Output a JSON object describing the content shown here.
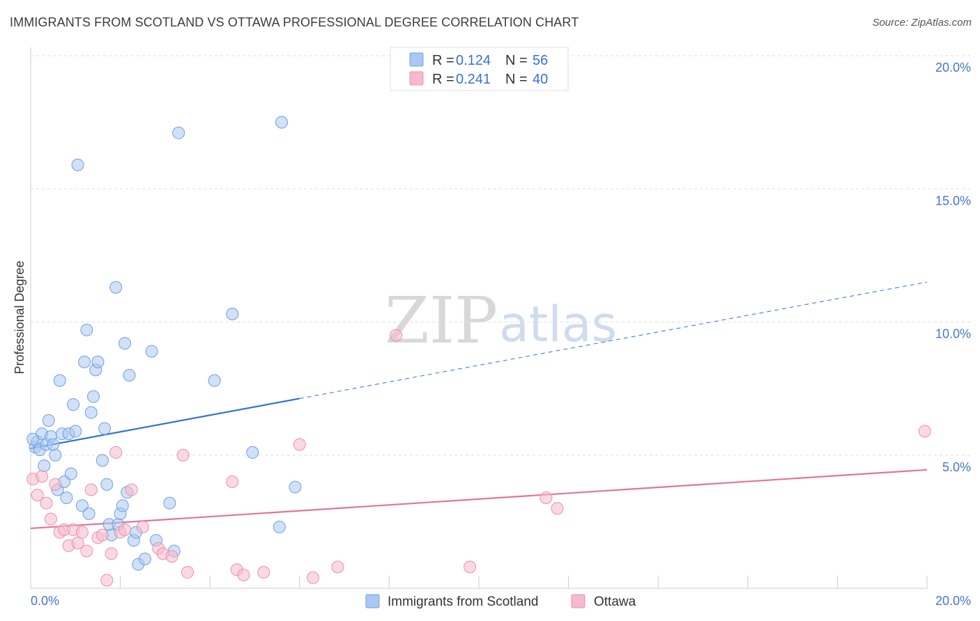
{
  "title": "IMMIGRANTS FROM SCOTLAND VS OTTAWA PROFESSIONAL DEGREE CORRELATION CHART",
  "source": "Source: ZipAtlas.com",
  "watermark": {
    "zip": "ZIP",
    "atlas": "atlas"
  },
  "legend": {
    "rows": [
      {
        "r_label": "R =",
        "r_value": "0.124",
        "n_label": "N =",
        "n_value": "56",
        "color": "#a9c8f2"
      },
      {
        "r_label": "R =",
        "r_value": "0.241",
        "n_label": "N =",
        "n_value": "40",
        "color": "#f7b9cc"
      }
    ]
  },
  "bottom_legend": [
    {
      "label": "Immigrants from Scotland",
      "color": "#a9c8f2"
    },
    {
      "label": "Ottawa",
      "color": "#f7b9cc"
    }
  ],
  "chart_data": {
    "type": "scatter",
    "title": "IMMIGRANTS FROM SCOTLAND VS OTTAWA PROFESSIONAL DEGREE CORRELATION CHART",
    "ylabel": "Professional Degree",
    "xlabel": "",
    "xlim": [
      0,
      20
    ],
    "ylim": [
      0,
      20
    ],
    "x_ticks": [
      "0.0%",
      "20.0%"
    ],
    "y_ticks": [
      {
        "value": 5,
        "label": "5.0%"
      },
      {
        "value": 10,
        "label": "10.0%"
      },
      {
        "value": 15,
        "label": "15.0%"
      },
      {
        "value": 20,
        "label": "20.0%"
      }
    ],
    "grid": true,
    "legend_position": "top-center",
    "series": [
      {
        "name": "Immigrants from Scotland",
        "color": "#a9c8f2",
        "stroke": "#6f9fe0",
        "line_color": "#2f74d0",
        "trend": {
          "x0": 0,
          "y0": 5.25,
          "x1": 20,
          "y1": 11.5,
          "solid_until": 6
        },
        "points": [
          [
            0.1,
            5.3
          ],
          [
            0.15,
            5.5
          ],
          [
            0.2,
            5.2
          ],
          [
            0.25,
            5.8
          ],
          [
            0.3,
            4.6
          ],
          [
            0.35,
            5.4
          ],
          [
            0.4,
            6.3
          ],
          [
            0.45,
            5.7
          ],
          [
            0.5,
            5.4
          ],
          [
            0.55,
            5.0
          ],
          [
            0.6,
            3.7
          ],
          [
            0.65,
            7.8
          ],
          [
            0.7,
            5.8
          ],
          [
            0.75,
            4.0
          ],
          [
            0.8,
            3.4
          ],
          [
            0.85,
            5.8
          ],
          [
            0.9,
            4.3
          ],
          [
            0.95,
            6.9
          ],
          [
            1.0,
            5.9
          ],
          [
            1.05,
            15.9
          ],
          [
            1.15,
            3.1
          ],
          [
            1.2,
            8.5
          ],
          [
            1.25,
            9.7
          ],
          [
            1.3,
            2.8
          ],
          [
            1.35,
            6.6
          ],
          [
            1.4,
            7.2
          ],
          [
            1.45,
            8.2
          ],
          [
            1.5,
            8.5
          ],
          [
            1.6,
            4.8
          ],
          [
            1.65,
            6.0
          ],
          [
            1.7,
            3.9
          ],
          [
            1.75,
            2.4
          ],
          [
            1.8,
            2.0
          ],
          [
            1.9,
            11.3
          ],
          [
            1.95,
            2.4
          ],
          [
            2.0,
            2.8
          ],
          [
            2.05,
            3.1
          ],
          [
            2.1,
            9.2
          ],
          [
            2.15,
            3.6
          ],
          [
            2.2,
            8.0
          ],
          [
            2.3,
            1.8
          ],
          [
            2.35,
            2.1
          ],
          [
            2.4,
            0.9
          ],
          [
            2.55,
            1.1
          ],
          [
            2.7,
            8.9
          ],
          [
            2.8,
            1.8
          ],
          [
            3.1,
            3.2
          ],
          [
            3.2,
            1.4
          ],
          [
            3.3,
            17.1
          ],
          [
            4.1,
            7.8
          ],
          [
            4.5,
            10.3
          ],
          [
            4.95,
            5.1
          ],
          [
            5.55,
            2.3
          ],
          [
            5.6,
            17.5
          ],
          [
            5.9,
            3.8
          ],
          [
            0.05,
            5.6
          ]
        ]
      },
      {
        "name": "Ottawa",
        "color": "#f7b9cc",
        "stroke": "#ec8fab",
        "line_color": "#e4739a",
        "trend": {
          "x0": 0,
          "y0": 2.25,
          "x1": 20,
          "y1": 4.45,
          "solid_until": 20
        },
        "points": [
          [
            0.05,
            4.1
          ],
          [
            0.15,
            3.5
          ],
          [
            0.25,
            4.2
          ],
          [
            0.35,
            3.2
          ],
          [
            0.45,
            2.6
          ],
          [
            0.55,
            3.9
          ],
          [
            0.65,
            2.1
          ],
          [
            0.75,
            2.2
          ],
          [
            0.85,
            1.6
          ],
          [
            0.95,
            2.2
          ],
          [
            1.05,
            1.7
          ],
          [
            1.15,
            2.1
          ],
          [
            1.25,
            1.4
          ],
          [
            1.35,
            3.7
          ],
          [
            1.5,
            1.9
          ],
          [
            1.6,
            2.0
          ],
          [
            1.7,
            0.3
          ],
          [
            1.8,
            1.3
          ],
          [
            1.9,
            5.1
          ],
          [
            2.0,
            2.1
          ],
          [
            2.1,
            2.2
          ],
          [
            2.25,
            3.7
          ],
          [
            2.5,
            2.3
          ],
          [
            2.85,
            1.5
          ],
          [
            2.95,
            1.3
          ],
          [
            3.15,
            1.2
          ],
          [
            3.4,
            5.0
          ],
          [
            3.5,
            0.6
          ],
          [
            4.5,
            4.0
          ],
          [
            4.6,
            0.7
          ],
          [
            4.75,
            0.5
          ],
          [
            5.2,
            0.6
          ],
          [
            6.0,
            5.4
          ],
          [
            6.3,
            0.4
          ],
          [
            6.85,
            0.8
          ],
          [
            8.15,
            9.5
          ],
          [
            9.8,
            0.8
          ],
          [
            11.5,
            3.4
          ],
          [
            11.75,
            3.0
          ],
          [
            19.95,
            5.9
          ]
        ]
      }
    ]
  }
}
